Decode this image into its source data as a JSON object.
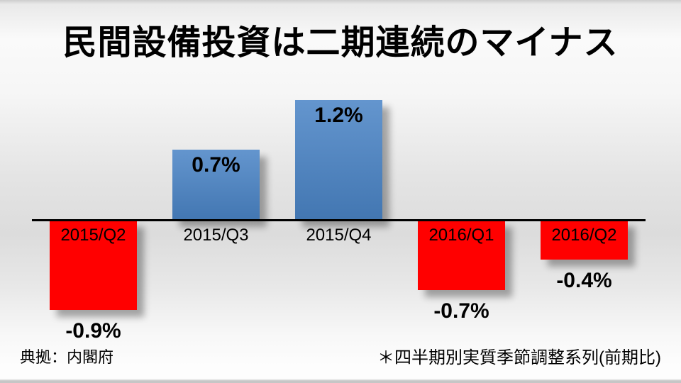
{
  "title": "民間設備投資は二期連続のマイナス",
  "footer": {
    "source": "典拠：内閣府",
    "note": "＊四半期別実質季節調整系列(前期比)"
  },
  "chart_data": {
    "type": "bar",
    "title": "民間設備投資は二期連続のマイナス",
    "categories": [
      "2015/Q2",
      "2015/Q3",
      "2015/Q4",
      "2016/Q1",
      "2016/Q2"
    ],
    "values": [
      -0.9,
      0.7,
      1.2,
      -0.7,
      -0.4
    ],
    "value_labels": [
      "-0.9%",
      "0.7%",
      "1.2%",
      "-0.7%",
      "-0.4%"
    ],
    "unit": "%",
    "xlabel": "",
    "ylabel": "",
    "ylim": [
      -1.0,
      1.45
    ],
    "baseline": 0,
    "grid": false,
    "legend": false,
    "positive_color": "#4a84c6",
    "negative_color": "#ff0000",
    "axis_color": "#000000",
    "label_color": "#000000"
  }
}
